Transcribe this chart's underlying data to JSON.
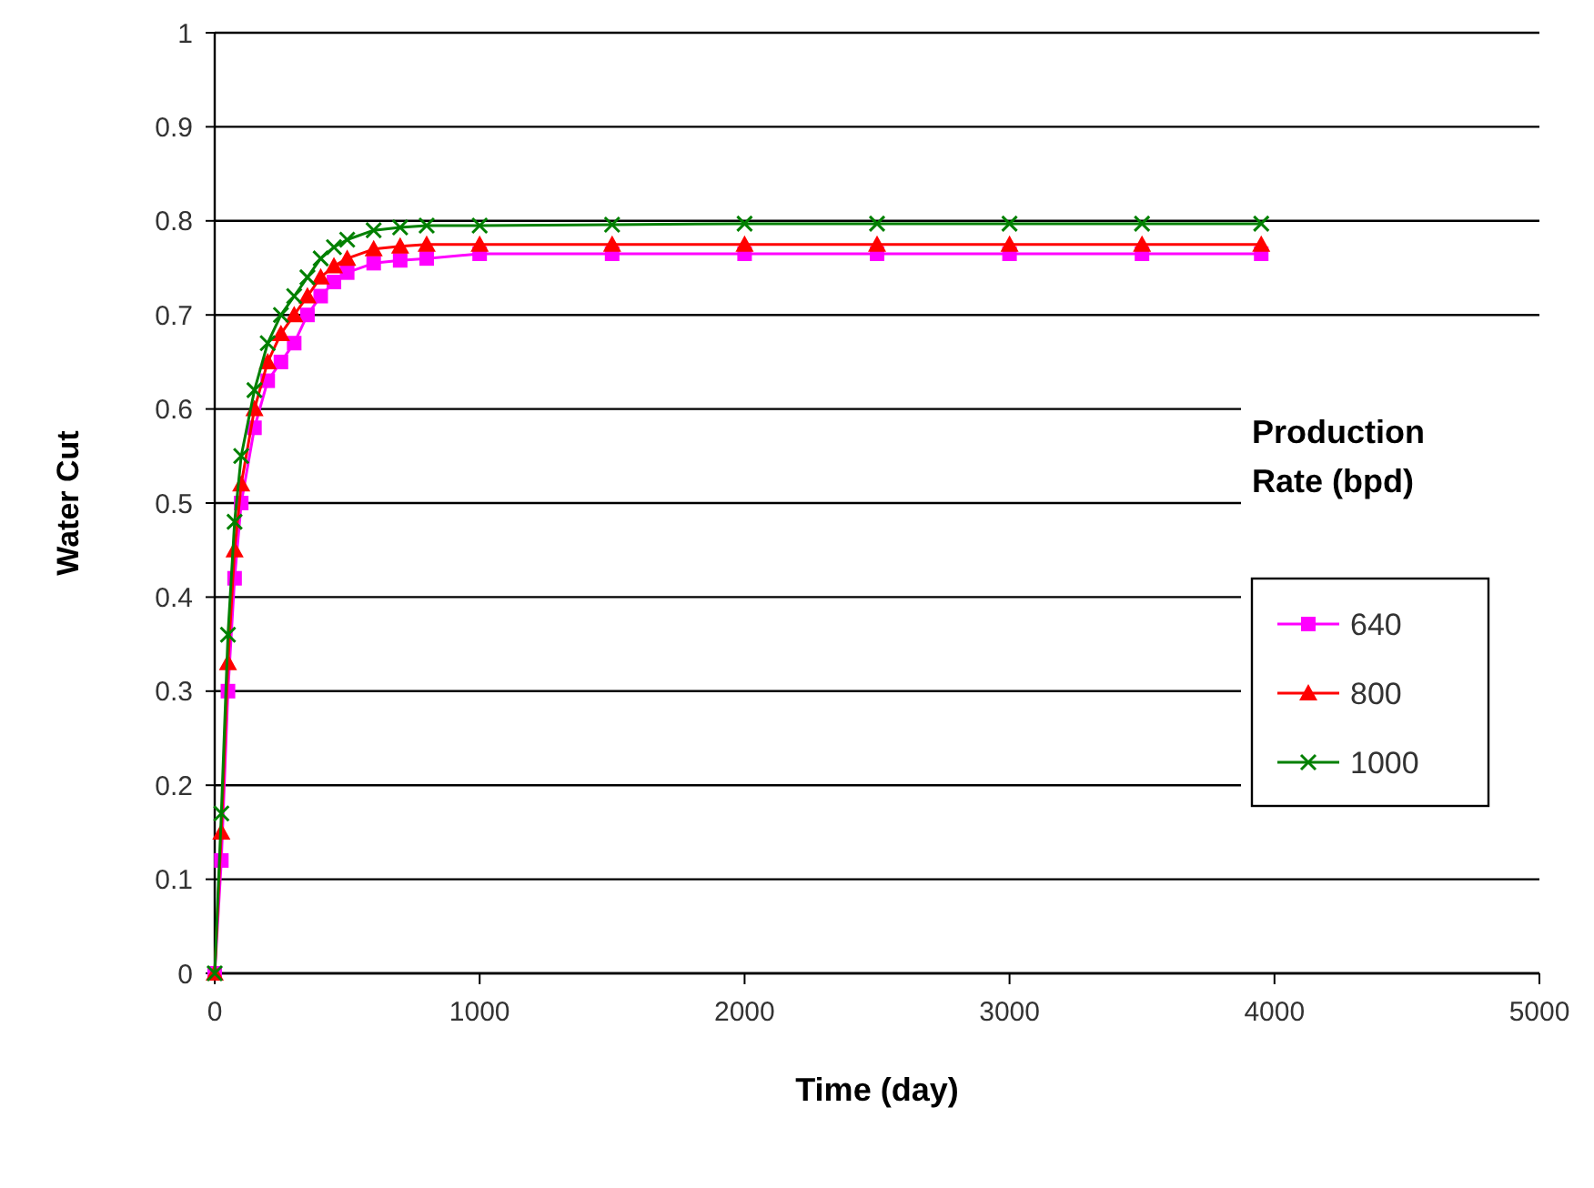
{
  "chart_data": {
    "type": "line",
    "xlabel": "Time (day)",
    "ylabel": "Water Cut",
    "legend_title": "Production Rate (bpd)",
    "xlim": [
      0,
      5000
    ],
    "xticks": [
      0,
      1000,
      2000,
      3000,
      4000,
      5000
    ],
    "ylim": [
      0,
      1
    ],
    "yticks": [
      0,
      0.1,
      0.2,
      0.3,
      0.4,
      0.5,
      0.6,
      0.7,
      0.8,
      0.9,
      1
    ],
    "grid": "y",
    "legend": "right",
    "line_style": "solid",
    "series": [
      {
        "name": "640",
        "color": "#ff00ff",
        "marker": "square",
        "x": [
          0,
          25,
          50,
          75,
          100,
          150,
          200,
          250,
          300,
          350,
          400,
          450,
          500,
          600,
          700,
          800,
          1000,
          1500,
          2000,
          2500,
          3000,
          3500,
          3950
        ],
        "values": [
          0,
          0.12,
          0.3,
          0.42,
          0.5,
          0.58,
          0.63,
          0.65,
          0.67,
          0.7,
          0.72,
          0.735,
          0.745,
          0.755,
          0.758,
          0.76,
          0.765,
          0.765,
          0.765,
          0.765,
          0.765,
          0.765,
          0.765
        ]
      },
      {
        "name": "800",
        "color": "#ff0000",
        "marker": "triangle",
        "x": [
          0,
          25,
          50,
          75,
          100,
          150,
          200,
          250,
          300,
          350,
          400,
          450,
          500,
          600,
          700,
          800,
          1000,
          1500,
          2000,
          2500,
          3000,
          3500,
          3950
        ],
        "values": [
          0,
          0.15,
          0.33,
          0.45,
          0.52,
          0.6,
          0.65,
          0.68,
          0.7,
          0.72,
          0.74,
          0.752,
          0.76,
          0.77,
          0.773,
          0.775,
          0.775,
          0.775,
          0.775,
          0.775,
          0.775,
          0.775,
          0.775
        ]
      },
      {
        "name": "1000",
        "color": "#008000",
        "marker": "cross",
        "x": [
          0,
          25,
          50,
          75,
          100,
          150,
          200,
          250,
          300,
          350,
          400,
          450,
          500,
          600,
          700,
          800,
          1000,
          1500,
          2000,
          2500,
          3000,
          3500,
          3950
        ],
        "values": [
          0,
          0.17,
          0.36,
          0.48,
          0.55,
          0.62,
          0.67,
          0.7,
          0.72,
          0.74,
          0.76,
          0.772,
          0.78,
          0.79,
          0.793,
          0.795,
          0.795,
          0.796,
          0.797,
          0.797,
          0.797,
          0.797,
          0.797
        ]
      }
    ]
  }
}
